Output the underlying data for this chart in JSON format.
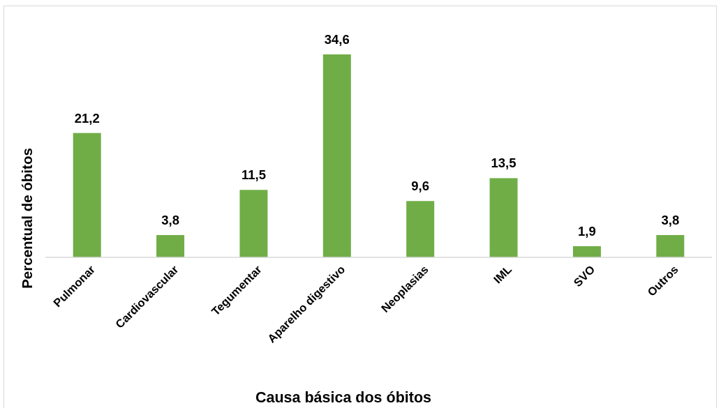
{
  "chart_data": {
    "type": "bar",
    "xlabel": "Causa básica dos óbitos",
    "ylabel": "Percentual de óbitos",
    "categories": [
      "Pulmonar",
      "Cardiovascular",
      "Tegumentar",
      "Aparelho digestivo",
      "Neoplasias",
      "IML",
      "SVO",
      "Outros"
    ],
    "values": [
      21.2,
      3.8,
      11.5,
      34.6,
      9.6,
      13.5,
      1.9,
      3.8
    ],
    "color": "#70ad47",
    "value_labels": [
      "21,2",
      "3,8",
      "11,5",
      "34,6",
      "9,6",
      "13,5",
      "1,9",
      "3,8"
    ]
  }
}
